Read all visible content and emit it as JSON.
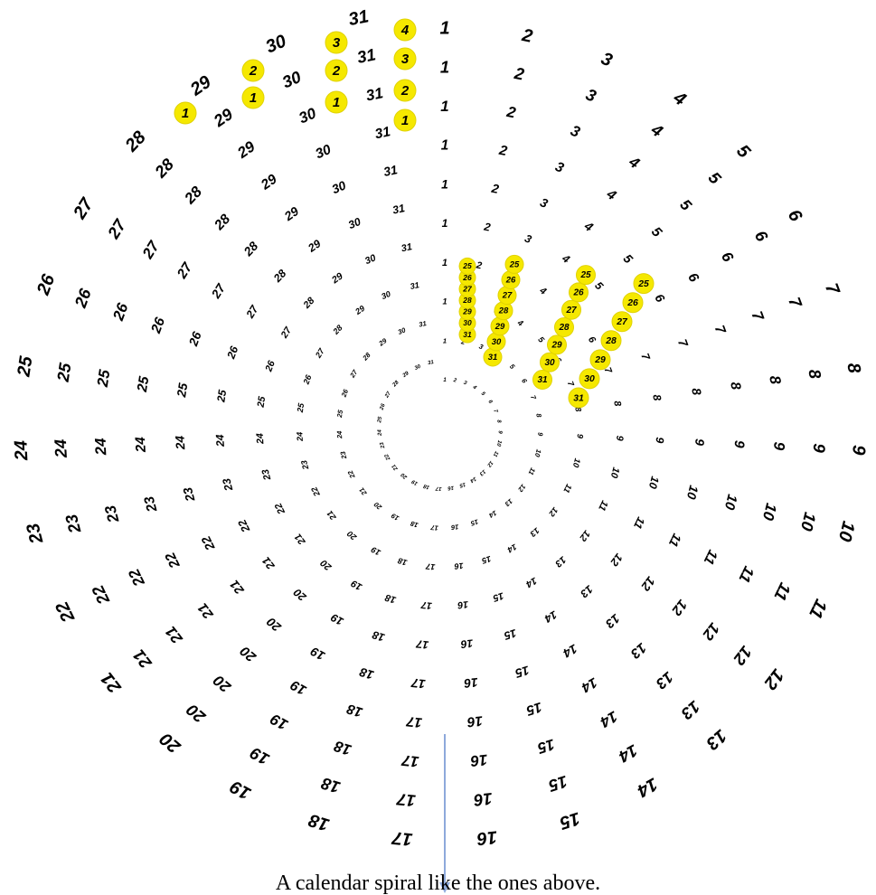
{
  "caption": "A calendar spiral like the ones above.",
  "colors": {
    "highlight_fill": "#f5e800",
    "highlight_stroke": "#e0d200",
    "text": "#000000",
    "arrow": "#8ea9db",
    "faint_label": "#f0e68c"
  },
  "rings": [
    {
      "ring": 1,
      "label_count": 31
    },
    {
      "ring": 2,
      "label_count": 31
    },
    {
      "ring": 3,
      "label_count": 31
    },
    {
      "ring": 4,
      "label_count": 31
    },
    {
      "ring": 5,
      "label_count": 31
    },
    {
      "ring": 6,
      "label_count": 31
    },
    {
      "ring": 7,
      "label_count": 31
    },
    {
      "ring": 8,
      "label_count": 31
    },
    {
      "ring": 9,
      "label_count": 31
    },
    {
      "ring": 10,
      "label_count": 31
    }
  ],
  "highlighted_days": [
    25,
    26,
    27,
    28,
    29,
    30,
    31
  ],
  "top_badges": [
    {
      "column": 1,
      "values": [
        "1"
      ]
    },
    {
      "column": 2,
      "values": [
        "1",
        "2"
      ]
    },
    {
      "column": 3,
      "values": [
        "1",
        "2",
        "3"
      ]
    },
    {
      "column": 4,
      "values": [
        "1",
        "2",
        "3",
        "4"
      ]
    }
  ],
  "outer_labels": {
    "top": [
      "1",
      "2",
      "3",
      "4",
      "5",
      "6",
      "7",
      "8",
      "9",
      "10"
    ],
    "left": [
      "31",
      "30",
      "29",
      "28",
      "27",
      "26",
      "25",
      "24"
    ]
  }
}
